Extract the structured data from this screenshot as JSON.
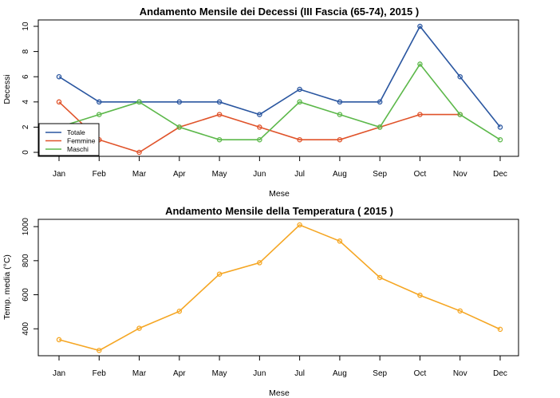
{
  "chart_data": [
    {
      "type": "line",
      "title": "Andamento Mensile dei Decessi (III Fascia (65-74),  2015 )",
      "xlabel": "Mese",
      "ylabel": "Decessi",
      "categories": [
        "Jan",
        "Feb",
        "Mar",
        "Apr",
        "May",
        "Jun",
        "Jul",
        "Aug",
        "Sep",
        "Oct",
        "Nov",
        "Dec"
      ],
      "ylim": [
        0,
        10
      ],
      "yticks": [
        0,
        2,
        4,
        6,
        8,
        10
      ],
      "legend_position": "bottom-left",
      "series": [
        {
          "name": "Totale",
          "color": "#2a56a0",
          "values": [
            6,
            4,
            4,
            4,
            4,
            3,
            5,
            4,
            4,
            10,
            6,
            2
          ]
        },
        {
          "name": "Femmine",
          "color": "#e0532a",
          "values": [
            4,
            1,
            0,
            2,
            3,
            2,
            1,
            1,
            2,
            3,
            3,
            null
          ]
        },
        {
          "name": "Maschi",
          "color": "#5cb84a",
          "values": [
            2,
            3,
            4,
            2,
            1,
            1,
            4,
            3,
            2,
            7,
            3,
            1
          ]
        }
      ]
    },
    {
      "type": "line",
      "title": "Andamento Mensile della Temperatura ( 2015 )",
      "xlabel": "Mese",
      "ylabel": "Temp. media (°C)",
      "categories": [
        "Jan",
        "Feb",
        "Mar",
        "Apr",
        "May",
        "Jun",
        "Jul",
        "Aug",
        "Sep",
        "Oct",
        "Nov",
        "Dec"
      ],
      "ylim": [
        270,
        1010
      ],
      "yticks": [
        400,
        600,
        800,
        1000
      ],
      "series": [
        {
          "name": "Temperatura",
          "color": "#f5a623",
          "values": [
            336,
            273,
            403,
            503,
            721,
            788,
            1010,
            915,
            701,
            597,
            505,
            397
          ]
        }
      ]
    }
  ]
}
